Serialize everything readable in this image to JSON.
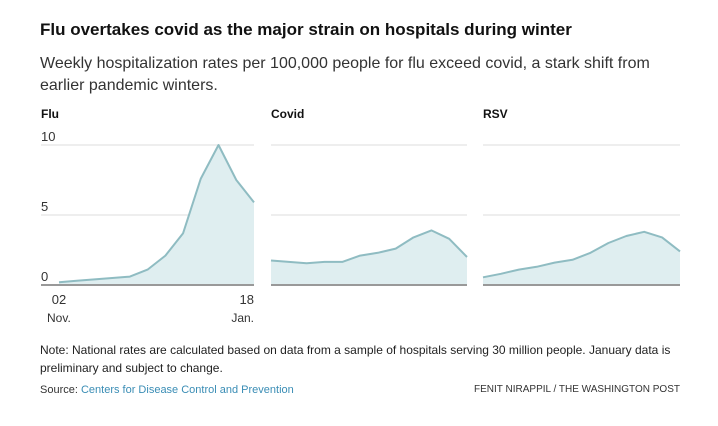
{
  "title": "Flu overtakes covid as the major strain on hospitals during winter",
  "subtitle": "Weekly hospitalization rates per 100,000 people for flu exceed covid, a stark shift from earlier pandemic winters.",
  "note": "Note: National rates are calculated based on data from a sample of hospitals serving 30 million people. January data is preliminary and subject to change.",
  "source_label": "Source: ",
  "source_link": "Centers for Disease Control and Prevention",
  "credit": "FENIT NIRAPPIL / THE WASHINGTON POST",
  "colors": {
    "line": "#8fbcc2",
    "fill": "#dfeef0",
    "grid": "#dddddd",
    "baseline": "#999999"
  },
  "chart_data": [
    {
      "type": "area",
      "title": "Flu",
      "ylim": [
        0,
        10
      ],
      "yticks": [
        0,
        5,
        10
      ],
      "grid": true,
      "xticks": [
        {
          "label": "02",
          "sub": "Nov."
        },
        {
          "label": "18",
          "sub": "Jan."
        }
      ],
      "values": [
        0.2,
        0.3,
        0.4,
        0.5,
        0.6,
        1.1,
        2.1,
        3.7,
        7.6,
        10,
        7.5,
        5.9
      ]
    },
    {
      "type": "area",
      "title": "Covid",
      "ylim": [
        0,
        10
      ],
      "grid": true,
      "values": [
        1.75,
        1.65,
        1.55,
        1.65,
        1.65,
        2.1,
        2.3,
        2.6,
        3.4,
        3.9,
        3.3,
        2.0
      ]
    },
    {
      "type": "area",
      "title": "RSV",
      "ylim": [
        0,
        10
      ],
      "grid": true,
      "values": [
        0.55,
        0.8,
        1.1,
        1.3,
        1.6,
        1.8,
        2.3,
        3.0,
        3.5,
        3.8,
        3.4,
        2.4
      ]
    }
  ]
}
